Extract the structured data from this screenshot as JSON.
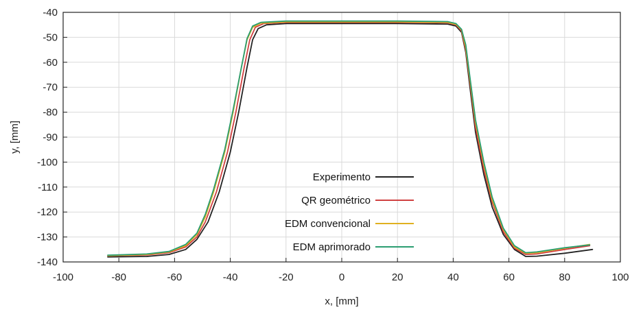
{
  "chart_data": {
    "type": "line",
    "title": "",
    "xlabel": "x, [mm]",
    "ylabel": "y, [mm]",
    "xlim": [
      -100,
      100
    ],
    "ylim": [
      -140,
      -40
    ],
    "xticks": [
      -100,
      -80,
      -60,
      -40,
      -20,
      0,
      20,
      40,
      60,
      80,
      100
    ],
    "yticks": [
      -40,
      -50,
      -60,
      -70,
      -80,
      -90,
      -100,
      -110,
      -120,
      -130,
      -140
    ],
    "grid": true,
    "legend": "center",
    "series": [
      {
        "name": "Experimento",
        "color": "#222222",
        "points": [
          [
            -84,
            -138
          ],
          [
            -70,
            -137.8
          ],
          [
            -62,
            -137
          ],
          [
            -56,
            -135
          ],
          [
            -52,
            -131
          ],
          [
            -48,
            -124
          ],
          [
            -44,
            -112
          ],
          [
            -40,
            -96
          ],
          [
            -37,
            -80
          ],
          [
            -34,
            -62
          ],
          [
            -32,
            -51
          ],
          [
            -30,
            -46.5
          ],
          [
            -27,
            -45
          ],
          [
            -20,
            -44.5
          ],
          [
            0,
            -44.5
          ],
          [
            20,
            -44.5
          ],
          [
            38,
            -44.7
          ],
          [
            41,
            -45.5
          ],
          [
            43,
            -48
          ],
          [
            44.5,
            -56
          ],
          [
            46,
            -70
          ],
          [
            48,
            -88
          ],
          [
            51,
            -105
          ],
          [
            54,
            -118
          ],
          [
            58,
            -129
          ],
          [
            62,
            -135
          ],
          [
            66,
            -137.8
          ],
          [
            70,
            -137.7
          ],
          [
            80,
            -136.5
          ],
          [
            90,
            -135
          ]
        ]
      },
      {
        "name": "QR geométrico",
        "color": "#d04040",
        "points": [
          [
            -84,
            -137.5
          ],
          [
            -70,
            -137.2
          ],
          [
            -62,
            -136.3
          ],
          [
            -56,
            -134
          ],
          [
            -52,
            -130
          ],
          [
            -49,
            -124
          ],
          [
            -45,
            -112
          ],
          [
            -41,
            -96
          ],
          [
            -38,
            -80
          ],
          [
            -35,
            -62
          ],
          [
            -33,
            -51
          ],
          [
            -31,
            -46
          ],
          [
            -28,
            -44.5
          ],
          [
            -20,
            -44
          ],
          [
            0,
            -44
          ],
          [
            20,
            -44
          ],
          [
            38,
            -44.2
          ],
          [
            41,
            -45
          ],
          [
            43,
            -47.5
          ],
          [
            44.5,
            -55
          ],
          [
            46,
            -68
          ],
          [
            48,
            -86
          ],
          [
            51,
            -103
          ],
          [
            54,
            -116
          ],
          [
            58,
            -128
          ],
          [
            62,
            -134.5
          ],
          [
            66,
            -137
          ],
          [
            70,
            -136.8
          ],
          [
            80,
            -135
          ],
          [
            89,
            -133.5
          ]
        ]
      },
      {
        "name": "EDM convencional",
        "color": "#e0b020",
        "points": [
          [
            -84,
            -137.5
          ],
          [
            -70,
            -137
          ],
          [
            -62,
            -136
          ],
          [
            -56,
            -133.5
          ],
          [
            -52,
            -129
          ],
          [
            -49,
            -122
          ],
          [
            -46,
            -112
          ],
          [
            -42,
            -96
          ],
          [
            -39,
            -80
          ],
          [
            -36,
            -62
          ],
          [
            -34,
            -51
          ],
          [
            -32,
            -46
          ],
          [
            -29,
            -44.3
          ],
          [
            -20,
            -43.8
          ],
          [
            0,
            -43.8
          ],
          [
            20,
            -43.8
          ],
          [
            38,
            -44
          ],
          [
            41,
            -44.8
          ],
          [
            43,
            -47
          ],
          [
            44.5,
            -54
          ],
          [
            46,
            -67
          ],
          [
            48,
            -84
          ],
          [
            51,
            -101
          ],
          [
            54,
            -115
          ],
          [
            58,
            -127
          ],
          [
            62,
            -134
          ],
          [
            66,
            -136.5
          ],
          [
            70,
            -136.3
          ],
          [
            80,
            -134.5
          ],
          [
            89,
            -133
          ]
        ]
      },
      {
        "name": "EDM aprimorado",
        "color": "#2a9d70",
        "points": [
          [
            -84,
            -137.3
          ],
          [
            -70,
            -136.8
          ],
          [
            -62,
            -135.8
          ],
          [
            -56,
            -133
          ],
          [
            -52,
            -128.5
          ],
          [
            -49,
            -121
          ],
          [
            -46,
            -111
          ],
          [
            -42,
            -95
          ],
          [
            -39,
            -79
          ],
          [
            -36,
            -62
          ],
          [
            -34,
            -50.5
          ],
          [
            -32,
            -45.5
          ],
          [
            -29,
            -44
          ],
          [
            -20,
            -43.5
          ],
          [
            0,
            -43.5
          ],
          [
            20,
            -43.5
          ],
          [
            38,
            -43.7
          ],
          [
            41,
            -44.5
          ],
          [
            43,
            -46.8
          ],
          [
            44.5,
            -53
          ],
          [
            46,
            -66
          ],
          [
            48,
            -83
          ],
          [
            51,
            -100
          ],
          [
            54,
            -114
          ],
          [
            58,
            -126.5
          ],
          [
            62,
            -133.5
          ],
          [
            66,
            -136.3
          ],
          [
            70,
            -136
          ],
          [
            80,
            -134.3
          ],
          [
            89,
            -133.2
          ]
        ]
      }
    ]
  }
}
